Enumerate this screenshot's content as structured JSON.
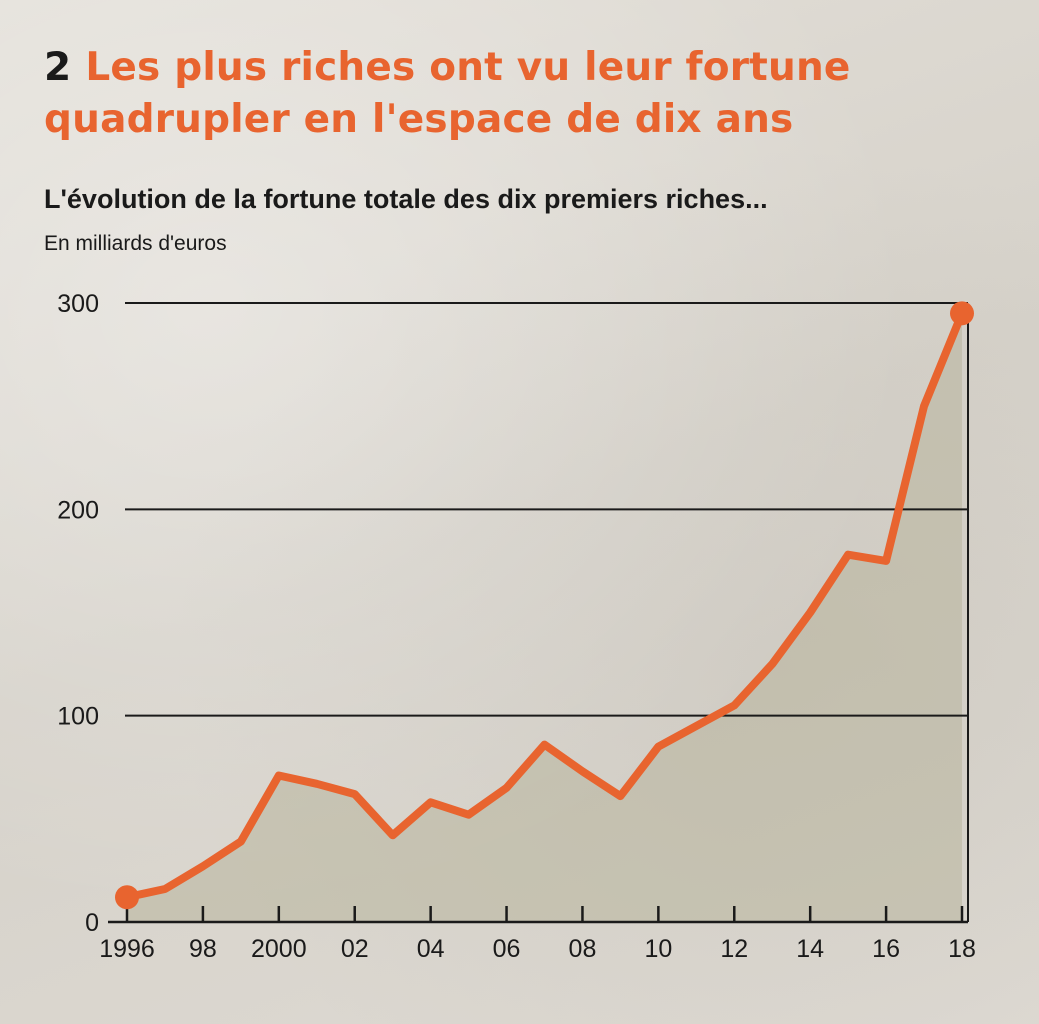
{
  "header": {
    "number": "2",
    "headline": "Les plus riches ont vu leur fortune quadrupler en l'espace de dix ans",
    "subtitle": "L'évolution de la fortune totale des dix premiers riches...",
    "unit": "En milliards d'euros"
  },
  "colors": {
    "line": "#e8642f",
    "area": "#b8b59c",
    "grid": "#1a1a1a",
    "accent_text": "#e8642f"
  },
  "chart_data": {
    "type": "area",
    "title": "L'évolution de la fortune totale des dix premiers riches...",
    "ylabel": "En milliards d'euros",
    "xlabel": "",
    "x": [
      1996,
      1997,
      1998,
      1999,
      2000,
      2001,
      2002,
      2003,
      2004,
      2005,
      2006,
      2007,
      2008,
      2009,
      2010,
      2011,
      2012,
      2013,
      2014,
      2015,
      2016,
      2017,
      2018
    ],
    "values": [
      12,
      16,
      27,
      39,
      71,
      67,
      62,
      42,
      58,
      52,
      65,
      86,
      73,
      61,
      85,
      95,
      105,
      125,
      150,
      178,
      175,
      250,
      295
    ],
    "xlim": [
      1996,
      2018
    ],
    "ylim": [
      0,
      300
    ],
    "yticks": [
      0,
      100,
      200,
      300
    ],
    "ytick_labels": [
      "0",
      "100",
      "200",
      "300"
    ],
    "xticks": [
      1996,
      1998,
      2000,
      2002,
      2004,
      2006,
      2008,
      2010,
      2012,
      2014,
      2016,
      2018
    ],
    "xtick_labels": [
      "1996",
      "98",
      "2000",
      "02",
      "04",
      "06",
      "08",
      "10",
      "12",
      "14",
      "16",
      "18"
    ],
    "markers": "first-and-last",
    "grid": "horizontal",
    "legend": "none"
  }
}
